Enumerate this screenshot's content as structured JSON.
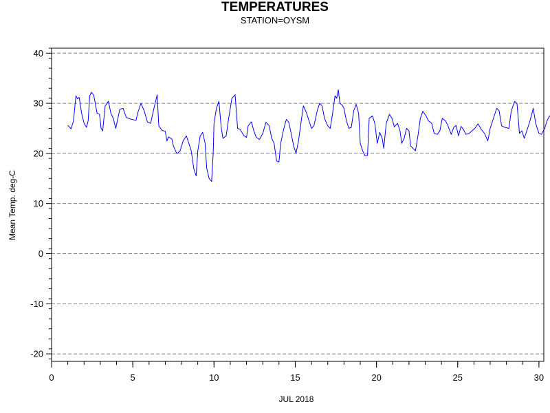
{
  "chart_data": {
    "type": "line",
    "title": "TEMPERATURES",
    "subtitle": "STATION=OYSM",
    "xlabel": "JUL 2018",
    "ylabel": "Mean Temp. deg-C",
    "xlim": [
      0,
      30.3
    ],
    "ylim": [
      -21.5,
      41
    ],
    "x_ticks": [
      0,
      5,
      10,
      15,
      20,
      25,
      30
    ],
    "y_ticks": [
      -20,
      -10,
      0,
      10,
      20,
      30,
      40
    ],
    "grid": "horizontal dashed",
    "line_color": "#0000ff",
    "series": [
      {
        "values": [
          [
            1.0,
            25.6
          ],
          [
            1.2,
            24.9
          ],
          [
            1.35,
            26.5
          ],
          [
            1.5,
            31.5
          ],
          [
            1.6,
            30.9
          ],
          [
            1.7,
            31.2
          ],
          [
            1.85,
            28.0
          ],
          [
            2.0,
            26.0
          ],
          [
            2.15,
            25.2
          ],
          [
            2.25,
            26.5
          ],
          [
            2.35,
            31.5
          ],
          [
            2.45,
            32.2
          ],
          [
            2.6,
            31.6
          ],
          [
            2.8,
            28.0
          ],
          [
            2.95,
            27.8
          ],
          [
            3.05,
            25.0
          ],
          [
            3.15,
            24.5
          ],
          [
            3.3,
            29.5
          ],
          [
            3.5,
            30.4
          ],
          [
            3.65,
            28.0
          ],
          [
            3.8,
            27.0
          ],
          [
            3.95,
            25.0
          ],
          [
            4.05,
            26.5
          ],
          [
            4.2,
            28.8
          ],
          [
            4.4,
            29.0
          ],
          [
            4.6,
            27.2
          ],
          [
            4.8,
            26.9
          ],
          [
            5.2,
            26.6
          ],
          [
            5.3,
            28.0
          ],
          [
            5.5,
            30.0
          ],
          [
            5.7,
            28.5
          ],
          [
            5.9,
            26.3
          ],
          [
            6.1,
            26.0
          ],
          [
            6.3,
            29.0
          ],
          [
            6.5,
            31.7
          ],
          [
            6.6,
            25.5
          ],
          [
            6.8,
            24.6
          ],
          [
            7.0,
            24.4
          ],
          [
            7.1,
            22.5
          ],
          [
            7.2,
            23.3
          ],
          [
            7.4,
            22.9
          ],
          [
            7.5,
            21.5
          ],
          [
            7.7,
            20.0
          ],
          [
            7.9,
            20.4
          ],
          [
            8.1,
            22.5
          ],
          [
            8.3,
            23.5
          ],
          [
            8.45,
            22.0
          ],
          [
            8.6,
            20.5
          ],
          [
            8.75,
            17.0
          ],
          [
            8.9,
            15.5
          ],
          [
            9.0,
            20.5
          ],
          [
            9.15,
            23.5
          ],
          [
            9.3,
            24.2
          ],
          [
            9.45,
            22.0
          ],
          [
            9.55,
            17.0
          ],
          [
            9.7,
            15.0
          ],
          [
            9.85,
            14.4
          ],
          [
            9.95,
            20.0
          ],
          [
            10.0,
            26.0
          ],
          [
            10.15,
            29.0
          ],
          [
            10.3,
            30.4
          ],
          [
            10.45,
            25.0
          ],
          [
            10.55,
            23.0
          ],
          [
            10.75,
            23.5
          ],
          [
            10.9,
            27.0
          ],
          [
            11.1,
            31.0
          ],
          [
            11.3,
            31.7
          ],
          [
            11.45,
            25.0
          ],
          [
            11.6,
            24.8
          ],
          [
            11.85,
            23.5
          ],
          [
            12.0,
            23.2
          ],
          [
            12.1,
            25.5
          ],
          [
            12.3,
            26.3
          ],
          [
            12.45,
            24.5
          ],
          [
            12.6,
            23.2
          ],
          [
            12.8,
            22.8
          ],
          [
            13.0,
            24.0
          ],
          [
            13.2,
            26.2
          ],
          [
            13.4,
            25.5
          ],
          [
            13.55,
            23.0
          ],
          [
            13.7,
            22.0
          ],
          [
            13.85,
            18.5
          ],
          [
            14.0,
            18.3
          ],
          [
            14.1,
            22.0
          ],
          [
            14.3,
            25.0
          ],
          [
            14.45,
            26.8
          ],
          [
            14.6,
            26.2
          ],
          [
            14.75,
            24.0
          ],
          [
            14.9,
            21.5
          ],
          [
            15.05,
            20.0
          ],
          [
            15.2,
            22.5
          ],
          [
            15.35,
            26.0
          ],
          [
            15.5,
            29.5
          ],
          [
            15.7,
            28.0
          ],
          [
            15.85,
            26.5
          ],
          [
            16.0,
            25.0
          ],
          [
            16.15,
            25.5
          ],
          [
            16.35,
            28.5
          ],
          [
            16.5,
            30.0
          ],
          [
            16.65,
            29.5
          ],
          [
            16.8,
            27.0
          ],
          [
            17.0,
            25.5
          ],
          [
            17.15,
            25.0
          ],
          [
            17.3,
            28.0
          ],
          [
            17.45,
            31.5
          ],
          [
            17.55,
            31.0
          ],
          [
            17.65,
            32.7
          ],
          [
            17.75,
            30.0
          ],
          [
            17.9,
            29.6
          ],
          [
            18.0,
            29.0
          ],
          [
            18.15,
            26.5
          ],
          [
            18.3,
            25.0
          ],
          [
            18.45,
            25.2
          ],
          [
            18.6,
            28.5
          ],
          [
            18.75,
            29.8
          ],
          [
            18.9,
            28.0
          ],
          [
            19.0,
            22.0
          ],
          [
            19.15,
            20.5
          ],
          [
            19.3,
            19.5
          ],
          [
            19.45,
            19.6
          ],
          [
            19.55,
            27.0
          ],
          [
            19.75,
            27.5
          ],
          [
            19.9,
            26.0
          ],
          [
            20.05,
            22.0
          ],
          [
            20.2,
            24.2
          ],
          [
            20.35,
            23.0
          ],
          [
            20.45,
            21.0
          ],
          [
            20.6,
            26.0
          ],
          [
            20.8,
            27.8
          ],
          [
            20.95,
            27.0
          ],
          [
            21.1,
            25.3
          ],
          [
            21.3,
            26.0
          ],
          [
            21.45,
            24.5
          ],
          [
            21.55,
            22.0
          ],
          [
            21.7,
            23.0
          ],
          [
            21.85,
            25.0
          ],
          [
            22.0,
            24.5
          ],
          [
            22.1,
            21.5
          ],
          [
            22.25,
            21.0
          ],
          [
            22.4,
            20.5
          ],
          [
            22.55,
            23.5
          ],
          [
            22.7,
            27.0
          ],
          [
            22.85,
            28.4
          ],
          [
            23.05,
            27.5
          ],
          [
            23.2,
            26.5
          ],
          [
            23.4,
            26.0
          ],
          [
            23.55,
            24.0
          ],
          [
            23.75,
            23.8
          ],
          [
            23.9,
            24.5
          ],
          [
            24.05,
            27.0
          ],
          [
            24.25,
            26.5
          ],
          [
            24.4,
            25.5
          ],
          [
            24.6,
            23.8
          ],
          [
            24.75,
            25.2
          ],
          [
            24.9,
            25.6
          ],
          [
            25.05,
            23.5
          ],
          [
            25.2,
            25.4
          ],
          [
            25.35,
            24.8
          ],
          [
            25.5,
            23.8
          ],
          [
            25.7,
            24.0
          ],
          [
            25.85,
            24.4
          ],
          [
            26.05,
            25.0
          ],
          [
            26.25,
            25.9
          ],
          [
            26.45,
            24.8
          ],
          [
            26.65,
            24.0
          ],
          [
            26.85,
            22.5
          ],
          [
            27.0,
            25.0
          ],
          [
            27.2,
            27.0
          ],
          [
            27.4,
            29.0
          ],
          [
            27.55,
            28.5
          ],
          [
            27.7,
            25.5
          ],
          [
            27.9,
            25.2
          ],
          [
            28.15,
            25.0
          ],
          [
            28.3,
            28.5
          ],
          [
            28.5,
            30.4
          ],
          [
            28.65,
            30.0
          ],
          [
            28.8,
            24.0
          ],
          [
            28.95,
            24.5
          ],
          [
            29.1,
            23.0
          ],
          [
            29.25,
            24.5
          ],
          [
            29.45,
            26.5
          ],
          [
            29.65,
            29.0
          ],
          [
            29.8,
            26.0
          ],
          [
            30.0,
            24.0
          ],
          [
            30.15,
            23.8
          ],
          [
            30.35,
            25.0
          ],
          [
            30.5,
            26.5
          ],
          [
            30.65,
            27.5
          ],
          [
            30.8,
            27.0
          ],
          [
            30.95,
            25.2
          ],
          [
            31.1,
            25.3
          ]
        ]
      }
    ]
  }
}
